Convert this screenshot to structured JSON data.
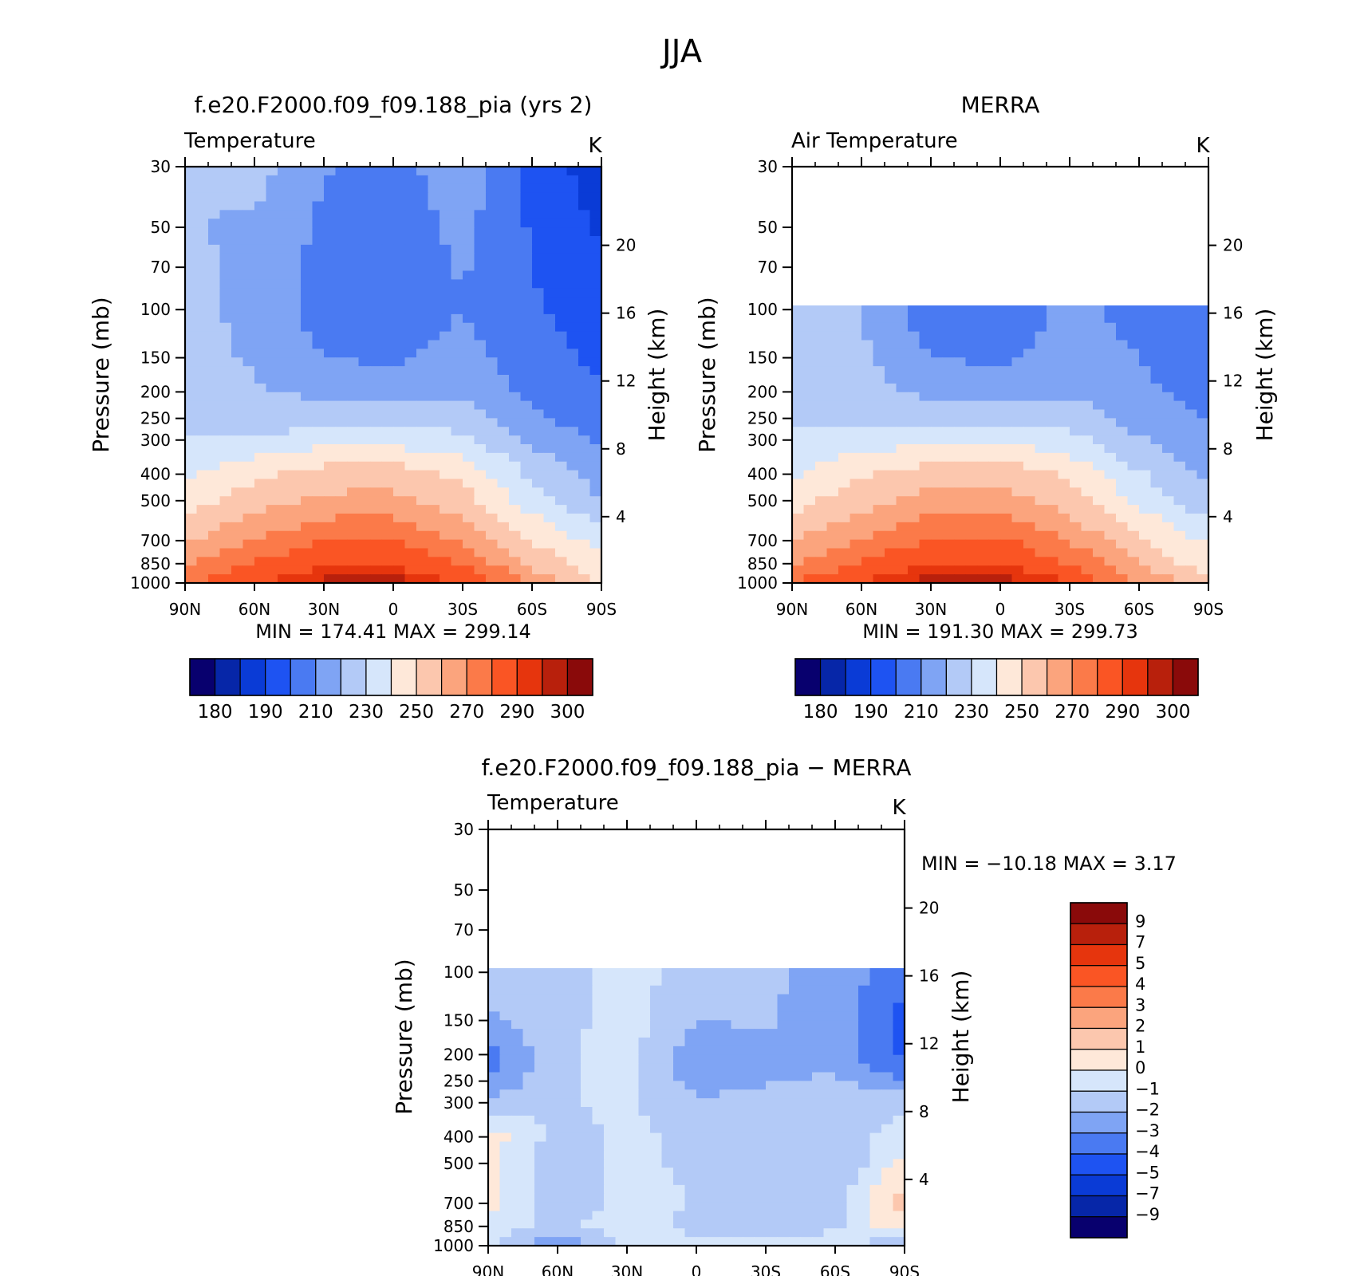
{
  "figure_title": "JJA",
  "levels_abs": [
    180,
    185,
    190,
    200,
    210,
    220,
    230,
    240,
    250,
    260,
    270,
    280,
    290,
    295,
    300
  ],
  "levels_diff": [
    -9,
    -7,
    -5,
    -4,
    -3,
    -2,
    -1,
    0,
    1,
    2,
    3,
    4,
    5,
    7,
    9
  ],
  "colors_abs": [
    "#08006E",
    "#0626A8",
    "#0A3BD6",
    "#1E53F2",
    "#4A7AF2",
    "#7FA4F4",
    "#B3CAF7",
    "#D6E6FB",
    "#FEE8D9",
    "#FCC7AE",
    "#FBA47D",
    "#FB7A49",
    "#FA5524",
    "#E6350D",
    "#B8200C",
    "#8A0A0A"
  ],
  "colors_diff": [
    "#08006E",
    "#0626A8",
    "#0A3BD6",
    "#1E53F2",
    "#4A7AF2",
    "#7FA4F4",
    "#B3CAF7",
    "#D6E6FB",
    "#FEE8D9",
    "#FCC7AE",
    "#FBA47D",
    "#FB7A49",
    "#FA5524",
    "#E6350D",
    "#B8200C",
    "#8A0A0A"
  ],
  "pressure_ticks": [
    "30",
    "50",
    "70",
    "100",
    "150",
    "200",
    "250",
    "300",
    "400",
    "500",
    "700",
    "850",
    "1000"
  ],
  "height_ticks": [
    "20",
    "16",
    "12",
    "8",
    "4"
  ],
  "lat_ticks": [
    "90N",
    "60N",
    "30N",
    "0",
    "30S",
    "60S",
    "90S"
  ],
  "cb_ticks_abs": [
    "180",
    "190",
    "210",
    "230",
    "250",
    "270",
    "290",
    "300"
  ],
  "cb_ticks_diff": [
    "9",
    "7",
    "5",
    "4",
    "3",
    "2",
    "1",
    "0",
    "−1",
    "−2",
    "−3",
    "−4",
    "−5",
    "−7",
    "−9"
  ],
  "panels": [
    {
      "title": "f.e20.F2000.f09_f09.188_pia (yrs 2)",
      "left_label": "Temperature",
      "unit": "K",
      "ylabel": "Pressure (mb)",
      "ylabel_right": "Height (km)",
      "minmax": "MIN = 174.41 MAX = 299.14"
    },
    {
      "title": "MERRA",
      "left_label": "Air Temperature",
      "unit": "K",
      "ylabel": "Pressure (mb)",
      "ylabel_right": "Height (km)",
      "minmax": "MIN = 191.30 MAX = 299.73"
    },
    {
      "title": "f.e20.F2000.f09_f09.188_pia − MERRA",
      "left_label": "Temperature",
      "unit": "K",
      "ylabel": "Pressure (mb)",
      "ylabel_right": "Height (km)",
      "minmax": "MIN = −10.18 MAX = 3.17"
    }
  ],
  "chart_data": [
    {
      "type": "heatmap",
      "title": "f.e20.F2000.f09_f09.188_pia (yrs 2)",
      "variable": "Temperature",
      "units": "K",
      "xlabel": "",
      "ylabel": "Pressure (mb)",
      "y2label": "Height (km)",
      "x": [
        90,
        60,
        30,
        0,
        -30,
        -60,
        -90
      ],
      "x_tick_labels": [
        "90N",
        "60N",
        "30N",
        "0",
        "30S",
        "60S",
        "90S"
      ],
      "y": [
        30,
        50,
        70,
        100,
        150,
        200,
        250,
        300,
        400,
        500,
        700,
        850,
        1000
      ],
      "y_scale": "log",
      "values": [
        [
          220,
          224,
          211,
          206,
          217,
          196,
          185
        ],
        [
          221,
          218,
          208,
          204,
          213,
          199,
          188
        ],
        [
          222,
          218,
          206,
          202,
          211,
          200,
          192
        ],
        [
          222,
          218,
          205,
          202,
          210,
          201,
          195
        ],
        [
          223,
          219,
          210,
          208,
          214,
          204,
          198
        ],
        [
          225,
          221,
          218,
          216,
          219,
          207,
          202
        ],
        [
          227,
          225,
          224,
          224,
          225,
          212,
          205
        ],
        [
          230,
          232,
          236,
          236,
          233,
          218,
          208
        ],
        [
          238,
          248,
          255,
          256,
          247,
          228,
          215
        ],
        [
          245,
          255,
          262,
          263,
          254,
          235,
          220
        ],
        [
          258,
          270,
          280,
          281,
          268,
          250,
          236
        ],
        [
          268,
          281,
          288,
          289,
          279,
          258,
          242
        ],
        [
          280,
          290,
          297,
          298,
          289,
          268,
          250
        ]
      ],
      "min": 174.41,
      "max": 299.14,
      "colorbar_levels": [
        180,
        185,
        190,
        200,
        210,
        220,
        230,
        240,
        250,
        260,
        270,
        280,
        290,
        295,
        300
      ]
    },
    {
      "type": "heatmap",
      "title": "MERRA",
      "variable": "Air Temperature",
      "units": "K",
      "xlabel": "",
      "ylabel": "Pressure (mb)",
      "y2label": "Height (km)",
      "x": [
        90,
        60,
        30,
        0,
        -30,
        -60,
        -90
      ],
      "x_tick_labels": [
        "90N",
        "60N",
        "30N",
        "0",
        "30S",
        "60S",
        "90S"
      ],
      "y": [
        30,
        50,
        70,
        100,
        150,
        200,
        250,
        300,
        400,
        500,
        700,
        850,
        1000
      ],
      "y_scale": "log",
      "values": [
        [
          null,
          null,
          null,
          null,
          null,
          null,
          null
        ],
        [
          null,
          null,
          null,
          null,
          null,
          null,
          null
        ],
        [
          null,
          null,
          null,
          null,
          null,
          null,
          null
        ],
        [
          226,
          220,
          204,
          200,
          214,
          206,
          200
        ],
        [
          226,
          222,
          210,
          208,
          216,
          210,
          204
        ],
        [
          228,
          223,
          218,
          216,
          219,
          212,
          207
        ],
        [
          229,
          227,
          225,
          224,
          226,
          216,
          210
        ],
        [
          232,
          234,
          237,
          237,
          234,
          221,
          212
        ],
        [
          239,
          249,
          256,
          257,
          248,
          231,
          218
        ],
        [
          246,
          256,
          264,
          265,
          255,
          238,
          223
        ],
        [
          259,
          271,
          281,
          282,
          269,
          252,
          238
        ],
        [
          269,
          282,
          289,
          290,
          280,
          260,
          244
        ],
        [
          281,
          291,
          298,
          299,
          290,
          270,
          252
        ]
      ],
      "min": 191.3,
      "max": 299.73,
      "colorbar_levels": [
        180,
        185,
        190,
        200,
        210,
        220,
        230,
        240,
        250,
        260,
        270,
        280,
        290,
        295,
        300
      ]
    },
    {
      "type": "heatmap",
      "title": "f.e20.F2000.f09_f09.188_pia − MERRA",
      "variable": "Temperature",
      "units": "K",
      "xlabel": "",
      "ylabel": "Pressure (mb)",
      "y2label": "Height (km)",
      "x": [
        90,
        60,
        30,
        0,
        -30,
        -60,
        -90
      ],
      "x_tick_labels": [
        "90N",
        "60N",
        "30N",
        "0",
        "30S",
        "60S",
        "90S"
      ],
      "y": [
        30,
        50,
        70,
        100,
        150,
        200,
        250,
        300,
        400,
        500,
        700,
        850,
        1000
      ],
      "y_scale": "log",
      "values": [
        [
          null,
          null,
          null,
          null,
          null,
          null,
          null
        ],
        [
          null,
          null,
          null,
          null,
          null,
          null,
          null
        ],
        [
          null,
          null,
          null,
          null,
          null,
          null,
          null
        ],
        [
          -1.2,
          -1.5,
          -0.6,
          -1.4,
          -1.8,
          -2.5,
          -3.5
        ],
        [
          -2.3,
          -1.4,
          -0.5,
          -2.0,
          -1.9,
          -2.4,
          -4.5
        ],
        [
          -3.4,
          -1.2,
          -0.6,
          -2.6,
          -2.2,
          -2.6,
          -4.2
        ],
        [
          -3.0,
          -1.1,
          -0.7,
          -2.5,
          -2.1,
          -1.8,
          -3.0
        ],
        [
          -1.5,
          -1.1,
          -0.8,
          -1.8,
          -1.6,
          -1.4,
          -1.2
        ],
        [
          0.5,
          -1.4,
          -0.8,
          -1.2,
          -1.5,
          -1.4,
          -0.6
        ],
        [
          0.2,
          -1.6,
          -0.8,
          -1.2,
          -1.5,
          -2.0,
          0.4
        ],
        [
          0.3,
          -1.8,
          -0.7,
          -1.0,
          -1.4,
          -1.3,
          1.5
        ],
        [
          -0.7,
          -1.2,
          -0.6,
          -1.3,
          -1.7,
          -1.2,
          0.8
        ],
        [
          -0.6,
          -3.5,
          -0.5,
          -0.6,
          -0.7,
          -0.4,
          -2.0
        ]
      ],
      "min": -10.18,
      "max": 3.17,
      "colorbar_levels": [
        -9,
        -7,
        -5,
        -4,
        -3,
        -2,
        -1,
        0,
        1,
        2,
        3,
        4,
        5,
        7,
        9
      ]
    }
  ]
}
